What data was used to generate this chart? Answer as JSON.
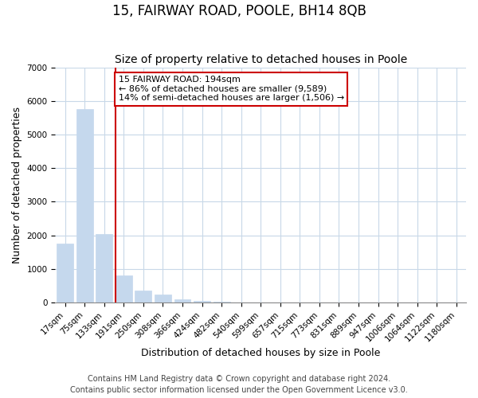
{
  "title": "15, FAIRWAY ROAD, POOLE, BH14 8QB",
  "subtitle": "Size of property relative to detached houses in Poole",
  "xlabel": "Distribution of detached houses by size in Poole",
  "ylabel": "Number of detached properties",
  "categories": [
    "17sqm",
    "75sqm",
    "133sqm",
    "191sqm",
    "250sqm",
    "308sqm",
    "366sqm",
    "424sqm",
    "482sqm",
    "540sqm",
    "599sqm",
    "657sqm",
    "715sqm",
    "773sqm",
    "831sqm",
    "889sqm",
    "947sqm",
    "1006sqm",
    "1064sqm",
    "1122sqm",
    "1180sqm"
  ],
  "values": [
    1750,
    5750,
    2050,
    800,
    370,
    230,
    110,
    60,
    25,
    15,
    0,
    0,
    0,
    0,
    0,
    0,
    0,
    0,
    0,
    0,
    0
  ],
  "bar_color": "#c5d8ed",
  "bar_edge_color": "#c5d8ed",
  "annotation_text": "15 FAIRWAY ROAD: 194sqm\n← 86% of detached houses are smaller (9,589)\n14% of semi-detached houses are larger (1,506) →",
  "annotation_box_color": "#ffffff",
  "annotation_box_edge": "#cc0000",
  "red_line_color": "#cc0000",
  "red_line_index": 3,
  "ylim": [
    0,
    7000
  ],
  "yticks": [
    0,
    1000,
    2000,
    3000,
    4000,
    5000,
    6000,
    7000
  ],
  "grid_color": "#c8d8e8",
  "footer_line1": "Contains HM Land Registry data © Crown copyright and database right 2024.",
  "footer_line2": "Contains public sector information licensed under the Open Government Licence v3.0.",
  "bg_color": "#ffffff",
  "plot_bg_color": "#ffffff",
  "title_fontsize": 12,
  "subtitle_fontsize": 10,
  "axis_label_fontsize": 9,
  "tick_fontsize": 7.5,
  "footer_fontsize": 7
}
